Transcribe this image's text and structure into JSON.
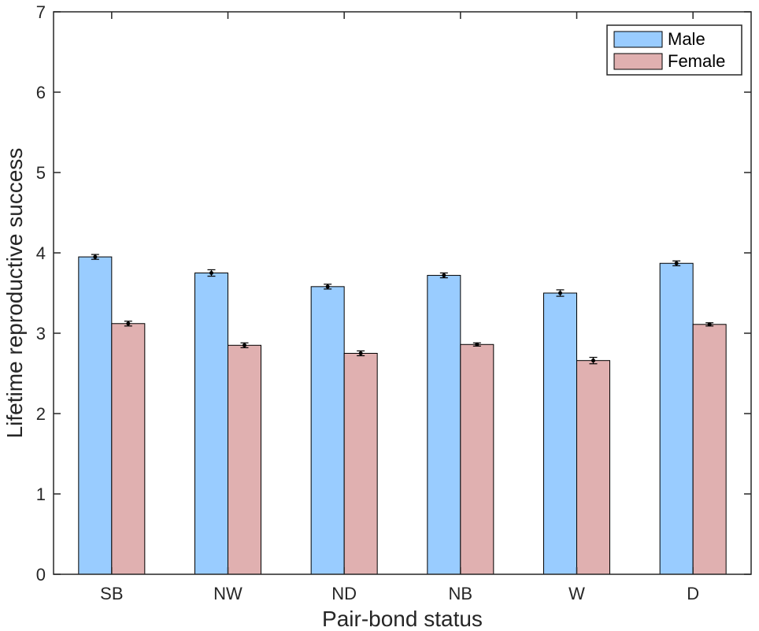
{
  "chart_data": {
    "type": "bar",
    "xlabel": "Pair-bond status",
    "ylabel": "Lifetime reproductive success",
    "categories": [
      "SB",
      "NW",
      "ND",
      "NB",
      "W",
      "D"
    ],
    "ylim": [
      0,
      7
    ],
    "yticks": [
      0,
      1,
      2,
      3,
      4,
      5,
      6,
      7
    ],
    "series": [
      {
        "name": "Male",
        "color": "#99ccff",
        "values": [
          3.95,
          3.75,
          3.58,
          3.72,
          3.5,
          3.87
        ],
        "errors": [
          0.03,
          0.04,
          0.03,
          0.03,
          0.04,
          0.03
        ]
      },
      {
        "name": "Female",
        "color": "#e0b0b0",
        "values": [
          3.12,
          2.85,
          2.75,
          2.86,
          2.66,
          3.11
        ],
        "errors": [
          0.03,
          0.03,
          0.03,
          0.02,
          0.04,
          0.02
        ]
      }
    ],
    "legend_position": "top-right",
    "grid": false
  }
}
